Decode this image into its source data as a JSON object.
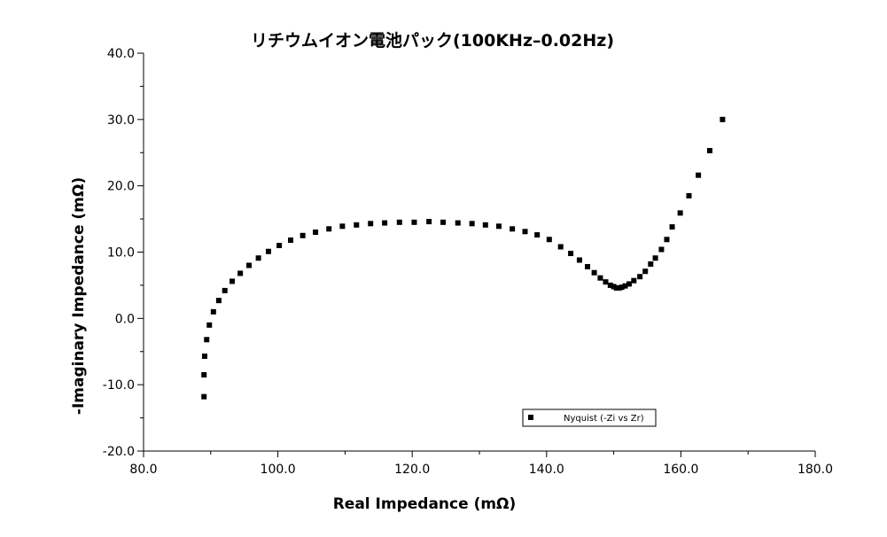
{
  "chart_data": {
    "type": "scatter",
    "title": "リチウムイオン電池パック(100KHz–0.02Hz)",
    "xlabel": "Real Impedance (mΩ)",
    "ylabel": "-Imaginary Impedance (mΩ)",
    "xlim": [
      80,
      180
    ],
    "ylim": [
      -20,
      40
    ],
    "xticks": [
      80,
      100,
      120,
      140,
      160,
      180
    ],
    "yticks": [
      -20,
      -10,
      0,
      10,
      20,
      30,
      40
    ],
    "x_tick_labels": [
      "80.0",
      "100.0",
      "120.0",
      "140.0",
      "160.0",
      "180.0"
    ],
    "y_tick_labels": [
      "-20.0",
      "-10.0",
      "0.0",
      "10.0",
      "20.0",
      "30.0",
      "40.0"
    ],
    "grid": false,
    "legend": {
      "position": "bottom-right",
      "entries": [
        "Nyquist (-Zi vs Zr)"
      ]
    },
    "colors": {
      "marker": "#000000",
      "axis": "#000000"
    },
    "series": [
      {
        "name": "Nyquist (-Zi vs Zr)",
        "marker": "square",
        "points": [
          [
            89.0,
            -11.8
          ],
          [
            89.0,
            -8.5
          ],
          [
            89.1,
            -5.7
          ],
          [
            89.4,
            -3.2
          ],
          [
            89.8,
            -1.0
          ],
          [
            90.4,
            1.0
          ],
          [
            91.2,
            2.7
          ],
          [
            92.1,
            4.2
          ],
          [
            93.2,
            5.6
          ],
          [
            94.4,
            6.8
          ],
          [
            95.7,
            8.0
          ],
          [
            97.1,
            9.1
          ],
          [
            98.6,
            10.1
          ],
          [
            100.2,
            11.0
          ],
          [
            101.9,
            11.8
          ],
          [
            103.7,
            12.5
          ],
          [
            105.6,
            13.0
          ],
          [
            107.6,
            13.5
          ],
          [
            109.6,
            13.9
          ],
          [
            111.7,
            14.1
          ],
          [
            113.8,
            14.3
          ],
          [
            115.9,
            14.4
          ],
          [
            118.1,
            14.5
          ],
          [
            120.3,
            14.5
          ],
          [
            122.5,
            14.6
          ],
          [
            124.6,
            14.5
          ],
          [
            126.8,
            14.4
          ],
          [
            128.9,
            14.3
          ],
          [
            130.9,
            14.1
          ],
          [
            132.9,
            13.9
          ],
          [
            134.9,
            13.5
          ],
          [
            136.8,
            13.1
          ],
          [
            138.6,
            12.6
          ],
          [
            140.4,
            11.9
          ],
          [
            142.1,
            10.8
          ],
          [
            143.6,
            9.8
          ],
          [
            144.9,
            8.8
          ],
          [
            146.1,
            7.8
          ],
          [
            147.1,
            6.9
          ],
          [
            148.0,
            6.1
          ],
          [
            148.8,
            5.5
          ],
          [
            149.5,
            5.0
          ],
          [
            150.0,
            4.8
          ],
          [
            150.4,
            4.6
          ],
          [
            150.8,
            4.6
          ],
          [
            151.2,
            4.7
          ],
          [
            151.7,
            4.9
          ],
          [
            152.3,
            5.2
          ],
          [
            153.0,
            5.7
          ],
          [
            153.9,
            6.3
          ],
          [
            154.7,
            7.1
          ],
          [
            155.5,
            8.2
          ],
          [
            156.2,
            9.1
          ],
          [
            157.1,
            10.4
          ],
          [
            157.9,
            11.9
          ],
          [
            158.7,
            13.8
          ],
          [
            159.9,
            15.9
          ],
          [
            161.2,
            18.5
          ],
          [
            162.6,
            21.6
          ],
          [
            164.3,
            25.3
          ],
          [
            166.2,
            30.0
          ]
        ]
      }
    ]
  }
}
